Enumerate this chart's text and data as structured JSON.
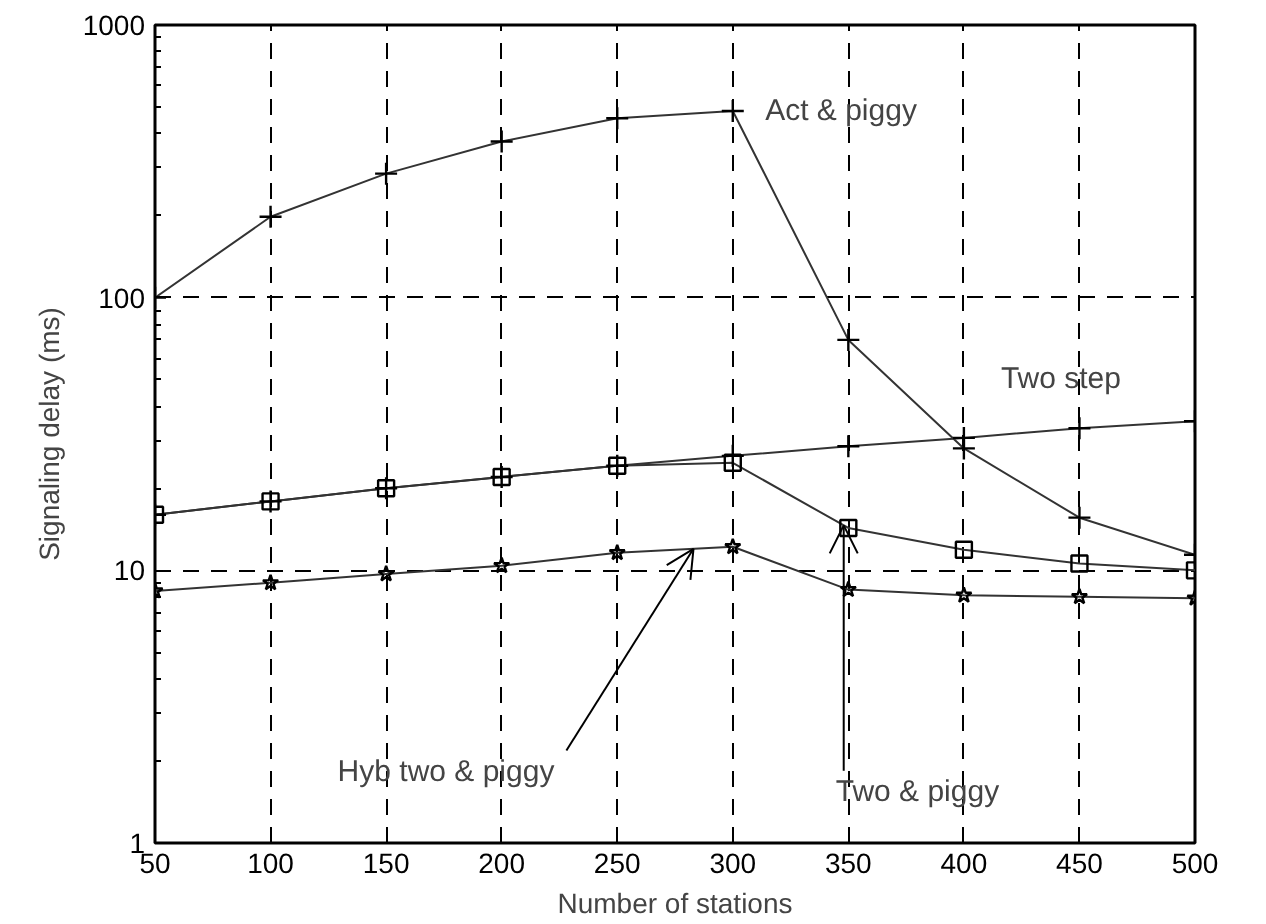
{
  "chart_data": {
    "type": "line",
    "xlabel": "Number of stations",
    "ylabel": "Signaling delay (ms)",
    "x": [
      50,
      100,
      150,
      200,
      250,
      300,
      350,
      400,
      450,
      500
    ],
    "xlim": [
      50,
      500
    ],
    "xticks": [
      50,
      100,
      150,
      200,
      250,
      300,
      350,
      400,
      450,
      500
    ],
    "ylim": [
      1,
      1000
    ],
    "yticks": [
      1,
      10,
      100,
      1000
    ],
    "log": "y",
    "grid": true,
    "series": [
      {
        "name": "Act & piggy",
        "color": "#333333",
        "marker": "cross",
        "values": [
          100,
          198,
          285,
          374,
          455,
          484,
          70,
          28,
          15.6,
          11.4
        ]
      },
      {
        "name": "Two & piggy",
        "color": "#333333",
        "marker": "square",
        "values": [
          16,
          17.9,
          20,
          22,
          24.2,
          24.8,
          14.3,
          11.9,
          10.6,
          10
        ]
      },
      {
        "name": "Two step",
        "color": "#333333",
        "marker": "cross",
        "values": [
          16,
          17.9,
          20,
          22,
          24.2,
          26.3,
          28.5,
          30.6,
          33.2,
          35.2
        ]
      },
      {
        "name": "Hyb two & piggy",
        "color": "#333333",
        "marker": "star",
        "values": [
          8.4,
          9,
          9.7,
          10.4,
          11.6,
          12.2,
          8.5,
          8.1,
          8,
          7.9
        ]
      }
    ]
  }
}
